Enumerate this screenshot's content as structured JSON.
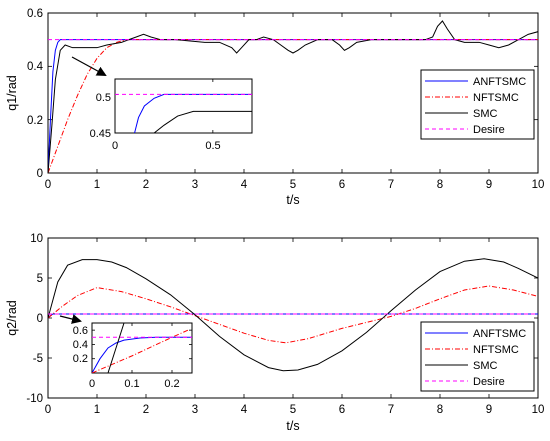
{
  "chart_data": [
    {
      "type": "line",
      "xlabel": "t/s",
      "ylabel": "q1/rad",
      "xlim": [
        0,
        10
      ],
      "ylim": [
        0,
        0.6
      ],
      "xticks": [
        0,
        1,
        2,
        3,
        4,
        5,
        6,
        7,
        8,
        9,
        10
      ],
      "yticks": [
        0,
        0.2,
        0.4,
        0.6
      ],
      "legend_position": "right",
      "series": [
        {
          "name": "ANFTSMC",
          "color": "#0000ff",
          "style": "solid",
          "points": [
            [
              0,
              0
            ],
            [
              0.05,
              0.2
            ],
            [
              0.1,
              0.38
            ],
            [
              0.15,
              0.46
            ],
            [
              0.2,
              0.49
            ],
            [
              0.25,
              0.5
            ],
            [
              10,
              0.5
            ]
          ]
        },
        {
          "name": "NFTSMC",
          "color": "#ff0000",
          "style": "dashdot",
          "points": [
            [
              0,
              0
            ],
            [
              0.2,
              0.1
            ],
            [
              0.4,
              0.2
            ],
            [
              0.6,
              0.29
            ],
            [
              0.8,
              0.37
            ],
            [
              1.0,
              0.43
            ],
            [
              1.2,
              0.47
            ],
            [
              1.4,
              0.49
            ],
            [
              1.6,
              0.5
            ],
            [
              10,
              0.5
            ]
          ]
        },
        {
          "name": "SMC",
          "color": "#000000",
          "style": "solid",
          "points": [
            [
              0,
              0
            ],
            [
              0.08,
              0.18
            ],
            [
              0.15,
              0.35
            ],
            [
              0.25,
              0.46
            ],
            [
              0.35,
              0.48
            ],
            [
              0.5,
              0.47
            ],
            [
              0.8,
              0.47
            ],
            [
              1.0,
              0.47
            ],
            [
              1.2,
              0.48
            ],
            [
              1.5,
              0.49
            ],
            [
              1.8,
              0.51
            ],
            [
              1.95,
              0.52
            ],
            [
              2.1,
              0.51
            ],
            [
              2.3,
              0.5
            ],
            [
              2.6,
              0.5
            ],
            [
              2.9,
              0.495
            ],
            [
              3.2,
              0.49
            ],
            [
              3.5,
              0.49
            ],
            [
              3.75,
              0.47
            ],
            [
              3.85,
              0.45
            ],
            [
              3.95,
              0.47
            ],
            [
              4.1,
              0.5
            ],
            [
              4.25,
              0.5
            ],
            [
              4.4,
              0.51
            ],
            [
              4.6,
              0.5
            ],
            [
              4.75,
              0.48
            ],
            [
              4.9,
              0.46
            ],
            [
              5.0,
              0.45
            ],
            [
              5.1,
              0.46
            ],
            [
              5.25,
              0.48
            ],
            [
              5.5,
              0.5
            ],
            [
              5.8,
              0.5
            ],
            [
              5.95,
              0.48
            ],
            [
              6.05,
              0.46
            ],
            [
              6.15,
              0.47
            ],
            [
              6.3,
              0.49
            ],
            [
              6.6,
              0.5
            ],
            [
              7.0,
              0.5
            ],
            [
              7.3,
              0.5
            ],
            [
              7.5,
              0.5
            ],
            [
              7.7,
              0.5
            ],
            [
              7.85,
              0.51
            ],
            [
              7.95,
              0.55
            ],
            [
              8.05,
              0.57
            ],
            [
              8.15,
              0.54
            ],
            [
              8.3,
              0.5
            ],
            [
              8.5,
              0.49
            ],
            [
              8.8,
              0.49
            ],
            [
              9.0,
              0.48
            ],
            [
              9.2,
              0.47
            ],
            [
              9.4,
              0.48
            ],
            [
              9.6,
              0.5
            ],
            [
              9.8,
              0.52
            ],
            [
              10,
              0.53
            ]
          ]
        },
        {
          "name": "Desire",
          "color": "#ff00ff",
          "style": "dashed",
          "points": [
            [
              0,
              0.5
            ],
            [
              10,
              0.5
            ]
          ]
        }
      ],
      "inset": {
        "xlim": [
          0,
          0.7
        ],
        "ylim": [
          0.45,
          0.52
        ],
        "xticks": [
          0,
          0.5
        ],
        "yticks": [
          0.45,
          0.5
        ],
        "series": [
          {
            "name": "ANFTSMC",
            "points": [
              [
                0.1,
                0.45
              ],
              [
                0.12,
                0.47
              ],
              [
                0.15,
                0.485
              ],
              [
                0.2,
                0.495
              ],
              [
                0.25,
                0.5
              ],
              [
                0.7,
                0.5
              ]
            ]
          },
          {
            "name": "SMC",
            "points": [
              [
                0.2,
                0.45
              ],
              [
                0.25,
                0.46
              ],
              [
                0.32,
                0.472
              ],
              [
                0.4,
                0.478
              ],
              [
                0.5,
                0.478
              ],
              [
                0.6,
                0.478
              ],
              [
                0.7,
                0.478
              ]
            ]
          },
          {
            "name": "Desire",
            "points": [
              [
                0,
                0.5
              ],
              [
                0.7,
                0.5
              ]
            ]
          }
        ]
      }
    },
    {
      "type": "line",
      "xlabel": "t/s",
      "ylabel": "q2/rad",
      "xlim": [
        0,
        10
      ],
      "ylim": [
        -10,
        10
      ],
      "xticks": [
        0,
        1,
        2,
        3,
        4,
        5,
        6,
        7,
        8,
        9,
        10
      ],
      "yticks": [
        -10,
        -5,
        0,
        5,
        10
      ],
      "legend_position": "right",
      "series": [
        {
          "name": "ANFTSMC",
          "color": "#0000ff",
          "style": "solid",
          "points": [
            [
              0,
              0
            ],
            [
              0.05,
              0.3
            ],
            [
              0.1,
              0.5
            ],
            [
              10,
              0.5
            ]
          ]
        },
        {
          "name": "NFTSMC",
          "color": "#ff0000",
          "style": "dashdot",
          "points": [
            [
              0,
              0
            ],
            [
              0.3,
              1.5
            ],
            [
              0.6,
              2.8
            ],
            [
              1.0,
              3.8
            ],
            [
              1.5,
              3.3
            ],
            [
              2.0,
              2.4
            ],
            [
              2.5,
              1.4
            ],
            [
              3.0,
              0.3
            ],
            [
              3.5,
              -0.8
            ],
            [
              4.0,
              -1.9
            ],
            [
              4.5,
              -2.8
            ],
            [
              4.85,
              -3.1
            ],
            [
              5.3,
              -2.6
            ],
            [
              6.0,
              -1.3
            ],
            [
              7.0,
              0.2
            ],
            [
              7.5,
              1.2
            ],
            [
              8.0,
              2.4
            ],
            [
              8.5,
              3.5
            ],
            [
              9.0,
              4.0
            ],
            [
              9.5,
              3.5
            ],
            [
              10,
              2.7
            ]
          ]
        },
        {
          "name": "SMC",
          "color": "#000000",
          "style": "solid",
          "points": [
            [
              0,
              0
            ],
            [
              0.2,
              4.5
            ],
            [
              0.4,
              6.6
            ],
            [
              0.7,
              7.3
            ],
            [
              1.0,
              7.3
            ],
            [
              1.3,
              7.0
            ],
            [
              1.6,
              6.3
            ],
            [
              2.0,
              4.9
            ],
            [
              2.5,
              2.9
            ],
            [
              3.0,
              0.4
            ],
            [
              3.5,
              -2.3
            ],
            [
              4.0,
              -4.6
            ],
            [
              4.5,
              -6.2
            ],
            [
              4.8,
              -6.6
            ],
            [
              5.1,
              -6.5
            ],
            [
              5.5,
              -5.8
            ],
            [
              6.0,
              -4.1
            ],
            [
              6.5,
              -1.8
            ],
            [
              7.0,
              0.9
            ],
            [
              7.5,
              3.5
            ],
            [
              8.0,
              5.8
            ],
            [
              8.5,
              7.1
            ],
            [
              8.9,
              7.4
            ],
            [
              9.3,
              7.0
            ],
            [
              9.6,
              6.2
            ],
            [
              10,
              5.0
            ]
          ]
        },
        {
          "name": "Desire",
          "color": "#ff00ff",
          "style": "dashed",
          "points": [
            [
              0,
              0.5
            ],
            [
              10,
              0.5
            ]
          ]
        }
      ],
      "inset": {
        "xlim": [
          0,
          0.25
        ],
        "ylim": [
          0,
          0.7
        ],
        "xticks": [
          0,
          0.1,
          0.2
        ],
        "yticks": [
          0.2,
          0.4,
          0.6
        ],
        "series": [
          {
            "name": "ANFTSMC",
            "points": [
              [
                0,
                0
              ],
              [
                0.02,
                0.2
              ],
              [
                0.04,
                0.35
              ],
              [
                0.06,
                0.42
              ],
              [
                0.08,
                0.46
              ],
              [
                0.12,
                0.49
              ],
              [
                0.16,
                0.5
              ],
              [
                0.25,
                0.5
              ]
            ]
          },
          {
            "name": "NFTSMC",
            "points": [
              [
                0,
                0
              ],
              [
                0.05,
                0.12
              ],
              [
                0.1,
                0.24
              ],
              [
                0.15,
                0.37
              ],
              [
                0.2,
                0.5
              ],
              [
                0.24,
                0.6
              ]
            ]
          },
          {
            "name": "SMC",
            "points": [
              [
                0.04,
                0
              ],
              [
                0.06,
                0.35
              ],
              [
                0.08,
                0.7
              ]
            ]
          },
          {
            "name": "Desire",
            "points": [
              [
                0,
                0.5
              ],
              [
                0.25,
                0.5
              ]
            ]
          }
        ]
      }
    }
  ]
}
